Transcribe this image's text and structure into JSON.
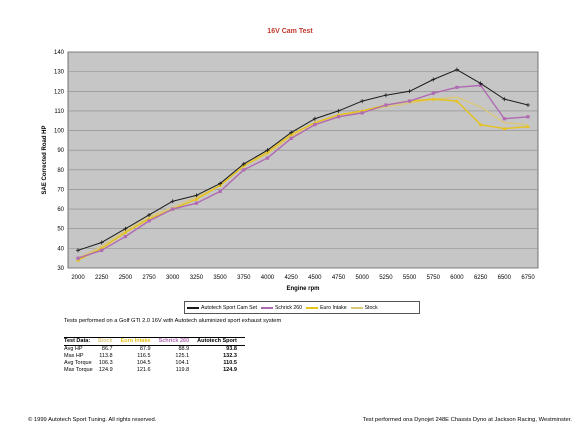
{
  "chart_data": {
    "type": "line",
    "title": "16V Cam Test",
    "xlabel": "Engine rpm",
    "ylabel": "SAE Corrected Road HP",
    "xlim": [
      2000,
      6750
    ],
    "ylim": [
      30,
      140
    ],
    "x": [
      2000,
      2250,
      2500,
      2750,
      3000,
      3250,
      3500,
      3750,
      4000,
      4250,
      4500,
      4750,
      5000,
      5250,
      5500,
      5750,
      6000,
      6250,
      6500,
      6750
    ],
    "x_ticks": [
      "2000",
      "2250",
      "2500",
      "2750",
      "3000",
      "3250",
      "3500",
      "3750",
      "4000",
      "4250",
      "4500",
      "4750",
      "5000",
      "5250",
      "5500",
      "5750",
      "6000",
      "6250",
      "6500",
      "6750"
    ],
    "y_ticks": [
      "30",
      "40",
      "50",
      "60",
      "70",
      "80",
      "90",
      "100",
      "110",
      "120",
      "130",
      "140"
    ],
    "grid": true,
    "legend_position": "bottom",
    "series": [
      {
        "name": "Autotech Sport Cam Set",
        "color": "#1a1a1a",
        "marker": "plus",
        "values": [
          39,
          43,
          50,
          57,
          64,
          67,
          73,
          83,
          90,
          99,
          106,
          110,
          115,
          118,
          120,
          126,
          131,
          124,
          116,
          113
        ]
      },
      {
        "name": "Schrick 260",
        "color": "#b06ab3",
        "marker": "square",
        "values": [
          35,
          39,
          46,
          54,
          60,
          63,
          69,
          80,
          86,
          96,
          103,
          107,
          109,
          113,
          115,
          119,
          122,
          123,
          106,
          107
        ]
      },
      {
        "name": "Euro Intake",
        "color": "#e6c21a",
        "marker": "triangle",
        "values": [
          34,
          40,
          48,
          55,
          60,
          65,
          72,
          82,
          89,
          98,
          104,
          108,
          110,
          113,
          115,
          116,
          115,
          103,
          101,
          102
        ]
      },
      {
        "name": "Stock",
        "color": "#d9c77a",
        "marker": "none",
        "values": [
          35,
          41,
          49,
          56,
          61,
          66,
          72,
          82,
          88,
          97,
          103,
          107,
          110,
          112,
          114,
          116,
          117,
          112,
          104,
          103
        ]
      }
    ]
  },
  "legend": {
    "items": [
      "Autotech Sport Cam Set",
      "Schrick 260",
      "Euro Intake",
      "Stock"
    ]
  },
  "note": "Tests performed on a Golf GTI 2.0 16V with Autotech aluminized sport exhaust system",
  "stats_table": {
    "headers": [
      "Test Data:",
      "Stock",
      "Euro Intake",
      "Schrick 260",
      "Autotech Sport"
    ],
    "rows": [
      {
        "label": "Avg HP",
        "values": [
          "86.7",
          "87.9",
          "88.9",
          "93.8"
        ]
      },
      {
        "label": "Max HP",
        "values": [
          "113.8",
          "116.5",
          "125.1",
          "132.3"
        ]
      },
      {
        "label": "Avg Torque",
        "values": [
          "106.3",
          "104.5",
          "104.1",
          "110.5"
        ]
      },
      {
        "label": "Max Torque",
        "values": [
          "124.9",
          "121.6",
          "119.8",
          "124.9"
        ]
      }
    ]
  },
  "footer": {
    "left": "© 1999 Autotech Sport Tuning. All rights reserved.",
    "right": "Test performed ona Dynojet 248E Chassis Dyno at Jackson Racing, Westminster."
  }
}
